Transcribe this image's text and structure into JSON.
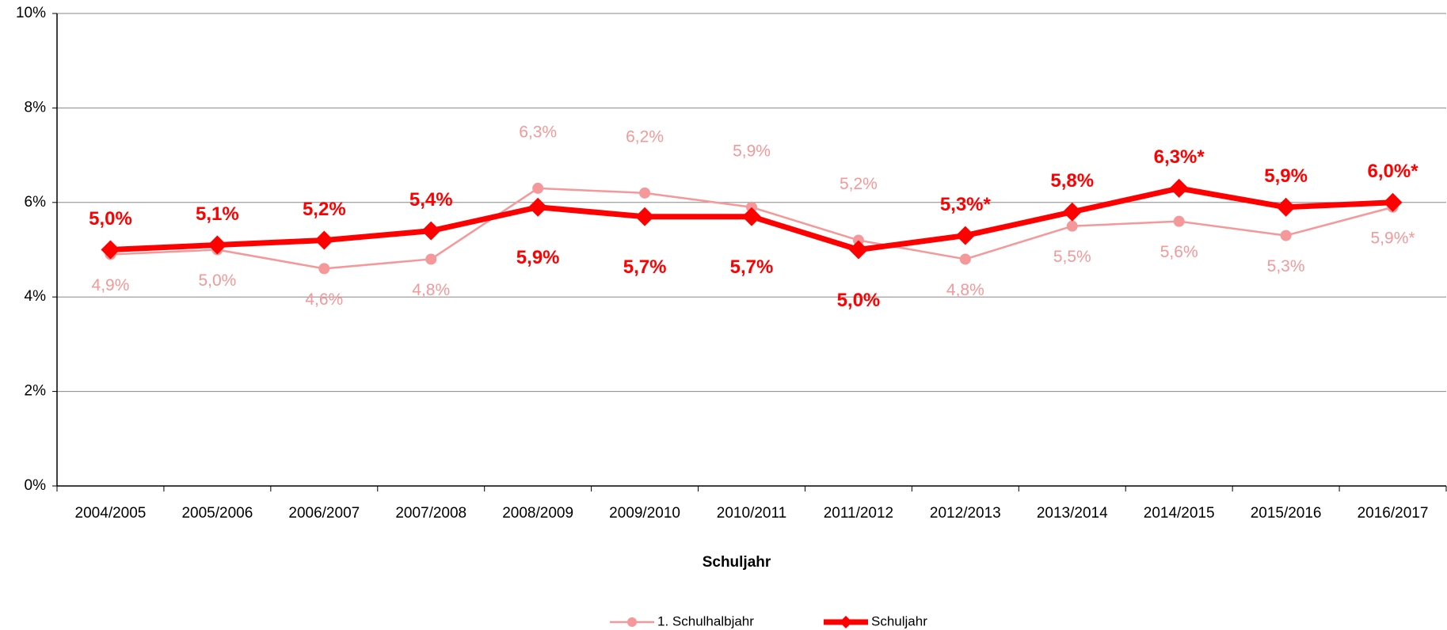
{
  "chart_data": {
    "type": "line",
    "x_label": "Schuljahr",
    "categories": [
      "2004/2005",
      "2005/2006",
      "2006/2007",
      "2007/2008",
      "2008/2009",
      "2009/2010",
      "2010/2011",
      "2011/2012",
      "2012/2013",
      "2013/2014",
      "2014/2015",
      "2015/2016",
      "2016/2017"
    ],
    "series": [
      {
        "name": "1. Schulhalbjahr",
        "color": "#f4989a",
        "values": [
          4.9,
          5.0,
          4.6,
          4.8,
          6.3,
          6.2,
          5.9,
          5.2,
          4.8,
          5.5,
          5.6,
          5.3,
          5.9
        ],
        "value_labels": [
          "4,9%",
          "5,0%",
          "4,6%",
          "4,8%",
          "6,3%",
          "6,2%",
          "5,9%",
          "5,2%",
          "4,8%",
          "5,5%",
          "5,6%",
          "5,3%",
          "5,9%*"
        ]
      },
      {
        "name": "Schuljahr",
        "color": "#ff0000",
        "values": [
          5.0,
          5.1,
          5.2,
          5.4,
          5.9,
          5.7,
          5.7,
          5.0,
          5.3,
          5.8,
          6.3,
          5.9,
          6.0
        ],
        "value_labels": [
          "5,0%",
          "5,1%",
          "5,2%",
          "5,4%",
          "5,9%",
          "5,7%",
          "5,7%",
          "5,0%",
          "5,3%*",
          "5,8%",
          "6,3%*",
          "5,9%",
          "6,0%*"
        ]
      }
    ],
    "ylim": [
      0,
      10
    ],
    "yticks": [
      {
        "value": 0,
        "label": "0%"
      },
      {
        "value": 2,
        "label": "2%"
      },
      {
        "value": 4,
        "label": "4%"
      },
      {
        "value": 6,
        "label": "6%"
      },
      {
        "value": 8,
        "label": "8%"
      },
      {
        "value": 10,
        "label": "10%"
      }
    ],
    "grid": true
  }
}
